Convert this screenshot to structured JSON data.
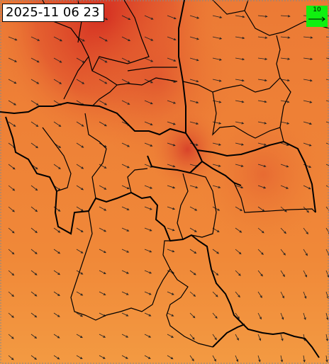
{
  "header": {
    "timestamp": "2025-11 06 23"
  },
  "legend": {
    "reference_speed": "10"
  }
}
